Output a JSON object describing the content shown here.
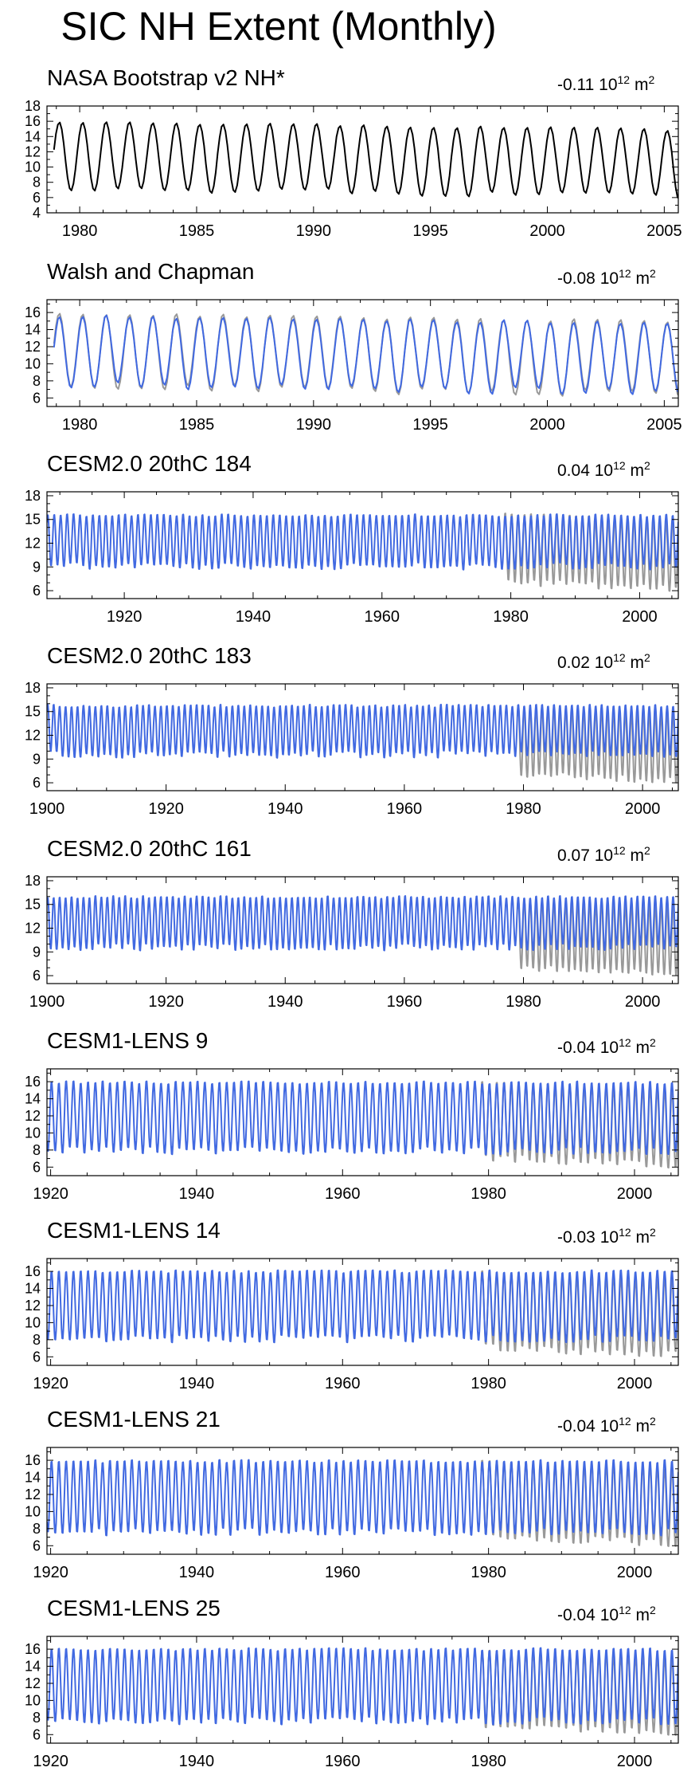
{
  "title": "SIC NH Extent (Monthly)",
  "colors": {
    "observed": "#000000",
    "model": "#4169e1",
    "obs_gray": "#999999"
  },
  "chart_data": [
    {
      "type": "line",
      "title": "NASA Bootstrap v2 NH*",
      "trend_value": "-0.11",
      "trend_units": "10",
      "trend_exp": "12",
      "trend_unit2": "m",
      "trend_exp2": "2",
      "xlim": [
        1978.6,
        2005.6
      ],
      "ylim": [
        4,
        18
      ],
      "xticks": [
        1980,
        1985,
        1990,
        1995,
        2000,
        2005
      ],
      "yticks": [
        4,
        6,
        8,
        10,
        12,
        14,
        16,
        18
      ],
      "series": [
        {
          "style": "obs-black",
          "x_range": [
            1978.9,
            2005.9
          ],
          "seasonal_max": 16.0,
          "seasonal_min": 7.2,
          "trend_per_decade": -0.4
        }
      ]
    },
    {
      "type": "line",
      "title": "Walsh and Chapman",
      "trend_value": "-0.08",
      "trend_units": "10",
      "trend_exp": "12",
      "trend_unit2": "m",
      "trend_exp2": "2",
      "xlim": [
        1978.6,
        2005.6
      ],
      "ylim": [
        5,
        17.5
      ],
      "xticks": [
        1980,
        1985,
        1990,
        1995,
        2000,
        2005
      ],
      "yticks": [
        6,
        8,
        10,
        12,
        14,
        16
      ],
      "series": [
        {
          "style": "obs-gray",
          "x_range": [
            1978.9,
            2005.9
          ],
          "seasonal_max": 15.9,
          "seasonal_min": 7.3,
          "trend_per_decade": -0.35
        },
        {
          "style": "model-blue",
          "x_range": [
            1978.9,
            2005.9
          ],
          "seasonal_max": 15.6,
          "seasonal_min": 7.4,
          "trend_per_decade": -0.32
        }
      ]
    },
    {
      "type": "line",
      "title": "CESM2.0 20thC 184",
      "trend_value": "0.04",
      "trend_units": "10",
      "trend_exp": "12",
      "trend_unit2": "m",
      "trend_exp2": "2",
      "xlim": [
        1908,
        2006
      ],
      "ylim": [
        5,
        18.5
      ],
      "xticks": [
        1920,
        1940,
        1960,
        1980,
        2000
      ],
      "yticks": [
        6,
        9,
        12,
        15,
        18
      ],
      "series": [
        {
          "style": "obs-gray",
          "x_range": [
            1979,
            2006
          ],
          "seasonal_max": 15.8,
          "seasonal_min": 7.0,
          "trend_per_decade": -0.3
        },
        {
          "style": "model-blue",
          "x_range": [
            1908,
            2006
          ],
          "seasonal_max": 15.6,
          "seasonal_min": 9.0,
          "trend_per_decade": 0.0
        }
      ]
    },
    {
      "type": "line",
      "title": "CESM2.0 20thC 183",
      "trend_value": "0.02",
      "trend_units": "10",
      "trend_exp": "12",
      "trend_unit2": "m",
      "trend_exp2": "2",
      "xlim": [
        1900,
        2006
      ],
      "ylim": [
        5,
        18.5
      ],
      "xticks": [
        1900,
        1920,
        1940,
        1960,
        1980,
        2000
      ],
      "yticks": [
        6,
        9,
        12,
        15,
        18
      ],
      "series": [
        {
          "style": "obs-gray",
          "x_range": [
            1979,
            2006
          ],
          "seasonal_max": 15.8,
          "seasonal_min": 7.0,
          "trend_per_decade": -0.3
        },
        {
          "style": "model-blue",
          "x_range": [
            1900,
            2006
          ],
          "seasonal_max": 15.8,
          "seasonal_min": 9.5,
          "trend_per_decade": 0.0
        }
      ]
    },
    {
      "type": "line",
      "title": "CESM2.0 20thC 161",
      "trend_value": "0.07",
      "trend_units": "10",
      "trend_exp": "12",
      "trend_unit2": "m",
      "trend_exp2": "2",
      "xlim": [
        1900,
        2006
      ],
      "ylim": [
        5,
        18.5
      ],
      "xticks": [
        1900,
        1920,
        1940,
        1960,
        1980,
        2000
      ],
      "yticks": [
        6,
        9,
        12,
        15,
        18
      ],
      "series": [
        {
          "style": "obs-gray",
          "x_range": [
            1979,
            2006
          ],
          "seasonal_max": 15.8,
          "seasonal_min": 7.0,
          "trend_per_decade": -0.3
        },
        {
          "style": "model-blue",
          "x_range": [
            1900,
            2006
          ],
          "seasonal_max": 16.0,
          "seasonal_min": 9.5,
          "trend_per_decade": 0.0
        }
      ]
    },
    {
      "type": "line",
      "title": "CESM1-LENS 9",
      "trend_value": "-0.04",
      "trend_units": "10",
      "trend_exp": "12",
      "trend_unit2": "m",
      "trend_exp2": "2",
      "xlim": [
        1919.5,
        2006
      ],
      "ylim": [
        5,
        17.5
      ],
      "xticks": [
        1920,
        1940,
        1960,
        1980,
        2000
      ],
      "yticks": [
        6,
        8,
        10,
        12,
        14,
        16
      ],
      "series": [
        {
          "style": "obs-gray",
          "x_range": [
            1979,
            2006
          ],
          "seasonal_max": 16.0,
          "seasonal_min": 7.0,
          "trend_per_decade": -0.3
        },
        {
          "style": "model-blue",
          "x_range": [
            1919.5,
            2006
          ],
          "seasonal_max": 16.0,
          "seasonal_min": 7.8,
          "trend_per_decade": 0.0
        }
      ]
    },
    {
      "type": "line",
      "title": "CESM1-LENS 14",
      "trend_value": "-0.03",
      "trend_units": "10",
      "trend_exp": "12",
      "trend_unit2": "m",
      "trend_exp2": "2",
      "xlim": [
        1919.5,
        2006
      ],
      "ylim": [
        5,
        17.5
      ],
      "xticks": [
        1920,
        1940,
        1960,
        1980,
        2000
      ],
      "yticks": [
        6,
        8,
        10,
        12,
        14,
        16
      ],
      "series": [
        {
          "style": "obs-gray",
          "x_range": [
            1979,
            2006
          ],
          "seasonal_max": 16.0,
          "seasonal_min": 7.0,
          "trend_per_decade": -0.3
        },
        {
          "style": "model-blue",
          "x_range": [
            1919.5,
            2006
          ],
          "seasonal_max": 16.1,
          "seasonal_min": 8.0,
          "trend_per_decade": 0.0
        }
      ]
    },
    {
      "type": "line",
      "title": "CESM1-LENS 21",
      "trend_value": "-0.04",
      "trend_units": "10",
      "trend_exp": "12",
      "trend_unit2": "m",
      "trend_exp2": "2",
      "xlim": [
        1919.5,
        2006
      ],
      "ylim": [
        5,
        17.5
      ],
      "xticks": [
        1920,
        1940,
        1960,
        1980,
        2000
      ],
      "yticks": [
        6,
        8,
        10,
        12,
        14,
        16
      ],
      "series": [
        {
          "style": "obs-gray",
          "x_range": [
            1979,
            2006
          ],
          "seasonal_max": 16.0,
          "seasonal_min": 7.0,
          "trend_per_decade": -0.3
        },
        {
          "style": "model-blue",
          "x_range": [
            1919.5,
            2006
          ],
          "seasonal_max": 16.0,
          "seasonal_min": 7.5,
          "trend_per_decade": 0.0
        }
      ]
    },
    {
      "type": "line",
      "title": "CESM1-LENS 25",
      "trend_value": "-0.04",
      "trend_units": "10",
      "trend_exp": "12",
      "trend_unit2": "m",
      "trend_exp2": "2",
      "xlim": [
        1919.5,
        2006
      ],
      "ylim": [
        5,
        17.5
      ],
      "xticks": [
        1920,
        1940,
        1960,
        1980,
        2000
      ],
      "yticks": [
        6,
        8,
        10,
        12,
        14,
        16
      ],
      "series": [
        {
          "style": "obs-gray",
          "x_range": [
            1979,
            2006
          ],
          "seasonal_max": 16.0,
          "seasonal_min": 7.0,
          "trend_per_decade": -0.3
        },
        {
          "style": "model-blue",
          "x_range": [
            1919.5,
            2006
          ],
          "seasonal_max": 16.1,
          "seasonal_min": 7.5,
          "trend_per_decade": 0.0
        }
      ]
    }
  ]
}
